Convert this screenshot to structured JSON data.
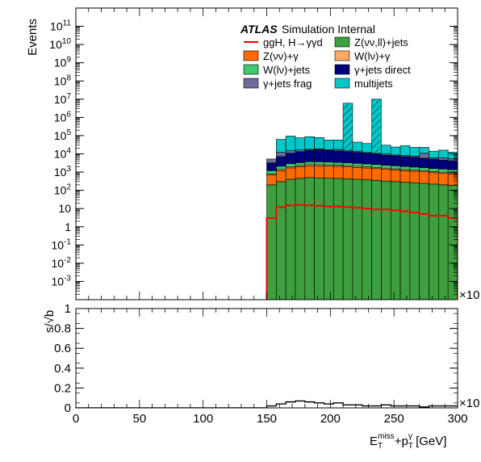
{
  "chart_data": [
    {
      "type": "bar",
      "panel": "upper",
      "stacked": true,
      "log_y": true,
      "ylabel": "Events",
      "xlim": [
        0,
        300
      ],
      "ylim": [
        0.0001,
        1000000000000
      ],
      "y_tick_labels": [
        "10^{-3}",
        "10^{-2}",
        "10^{-1}",
        "1",
        "10",
        "10^{2}",
        "10^{3}",
        "10^{4}",
        "10^{5}",
        "10^{6}",
        "10^{7}",
        "10^{8}",
        "10^{9}",
        "10^{10}",
        "10^{11}"
      ],
      "x_exponent_label": "×10",
      "atlas_label": "ATLAS",
      "atlas_sublabel": "Simulation Internal",
      "legend_position": "top-right",
      "x_bin_edges": [
        150,
        157.5,
        165,
        172.5,
        180,
        187.5,
        195,
        202.5,
        210,
        217.5,
        225,
        232.5,
        240,
        247.5,
        255,
        262.5,
        270,
        277.5,
        285,
        292.5,
        300
      ],
      "series": [
        {
          "key": "zvvll",
          "name": "Z(νν,ll)+jets",
          "color": "#3d9f3d",
          "values": [
            200,
            300,
            400,
            450,
            500,
            480,
            460,
            450,
            420,
            400,
            380,
            350,
            320,
            300,
            280,
            260,
            240,
            220,
            200,
            190
          ]
        },
        {
          "key": "zvvg",
          "name": "Z(νν)+γ",
          "color": "#ff6a00",
          "values": [
            500,
            900,
            1300,
            1500,
            1700,
            1700,
            1650,
            1600,
            1500,
            1400,
            1300,
            1200,
            1100,
            1000,
            900,
            850,
            800,
            700,
            650,
            600
          ]
        },
        {
          "key": "wlvg",
          "name": "W(lν)+γ",
          "color": "#ffa860",
          "values": [
            100,
            200,
            300,
            350,
            400,
            400,
            380,
            350,
            330,
            300,
            280,
            250,
            230,
            210,
            200,
            180,
            170,
            150,
            140,
            130
          ]
        },
        {
          "key": "wlvjets",
          "name": "W(lν)+jets",
          "color": "#40c870",
          "values": [
            400,
            700,
            900,
            1000,
            1100,
            1100,
            1050,
            1000,
            950,
            900,
            850,
            800,
            750,
            700,
            650,
            600,
            550,
            500,
            480,
            450
          ]
        },
        {
          "key": "gjdir",
          "name": "γ+jets direct",
          "color": "#00007f",
          "values": [
            2000,
            5000,
            8000,
            10000,
            12000,
            13000,
            12000,
            11000,
            10000,
            9000,
            8000,
            7000,
            6000,
            5500,
            5000,
            4500,
            4000,
            3500,
            3000,
            2800
          ]
        },
        {
          "key": "gjfrag",
          "name": "γ+jets frag",
          "color": "#6b6b9c",
          "values": [
            2000,
            5000,
            4000,
            3000,
            2000,
            2000,
            1500,
            3000,
            1500,
            2000,
            1000,
            1000,
            1500,
            1000,
            1000,
            1200,
            5000,
            1000,
            1500,
            1200
          ]
        },
        {
          "key": "multijets",
          "name": "multijets",
          "color": "#00c8c8",
          "values": [
            0,
            50000,
            80000,
            60000,
            70000,
            60000,
            40000,
            40000,
            6000000,
            30000,
            25000,
            10000000,
            20000,
            15000,
            20000,
            15000,
            12000,
            8000,
            10000,
            7000
          ]
        }
      ],
      "hatched_bins": [
        8,
        11
      ],
      "signal": {
        "name": "ggH, H→γγd",
        "color": "#ff0000",
        "values": [
          3,
          12,
          15,
          16,
          15,
          14,
          13,
          13,
          12,
          11,
          10,
          9,
          9,
          8,
          7,
          6,
          5,
          4,
          4,
          3
        ]
      }
    },
    {
      "type": "line",
      "panel": "lower",
      "ylabel": "s/√b",
      "xlabel": "E_T^{miss}+p_T^{γ} [GeV]",
      "xlim": [
        0,
        300
      ],
      "ylim": [
        0,
        1
      ],
      "x_ticks": [
        0,
        50,
        100,
        150,
        200,
        250,
        300
      ],
      "y_ticks": [
        0,
        0.2,
        0.4,
        0.6,
        0.8,
        1
      ],
      "x_exponent_label": "×10",
      "x_bin_edges": [
        150,
        157.5,
        165,
        172.5,
        180,
        187.5,
        195,
        202.5,
        210,
        217.5,
        225,
        232.5,
        240,
        247.5,
        255,
        262.5,
        270,
        277.5,
        285,
        292.5,
        300
      ],
      "values": [
        0.02,
        0.04,
        0.06,
        0.07,
        0.06,
        0.05,
        0.04,
        0.05,
        0.03,
        0.03,
        0.02,
        0.02,
        0.03,
        0.02,
        0.02,
        0.02,
        0.01,
        0.02,
        0.02,
        0.02
      ]
    }
  ]
}
